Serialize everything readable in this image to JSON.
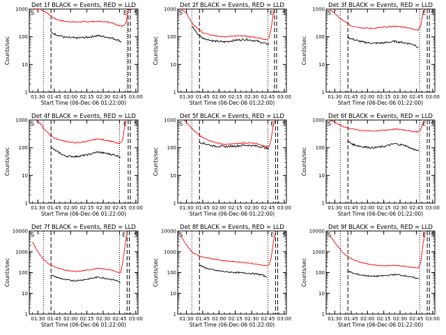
{
  "chart_data": [
    {
      "type": "line",
      "title": "Det 1f BLACK = Events, RED = LLD",
      "xlabel": "Start Time (06-Dec-06 01:22:00)",
      "ylabel": "Counts/sec",
      "yscale": "log",
      "ylim": [
        1,
        1000
      ],
      "xlim": [
        "01:22",
        "03:02"
      ],
      "x_ticks": [
        "01:30",
        "01:45",
        "02:00",
        "02:15",
        "02:30",
        "02:45",
        "03:00"
      ],
      "y_ticks": [
        "1",
        "10",
        "100",
        "1000"
      ],
      "top_left_mark": "S",
      "top_right_marks": [
        "E",
        "S"
      ],
      "dotted_markers": [
        "01:35",
        "02:52"
      ],
      "dashed_markers": [
        "01:42",
        "02:53",
        "02:55"
      ],
      "series": [
        {
          "color": "#ff0000",
          "x": [
            "01:25",
            "01:32",
            "01:38",
            "01:42",
            "01:47",
            "01:55",
            "02:05",
            "02:15",
            "02:25",
            "02:35",
            "02:40",
            "02:44",
            "02:47",
            "02:49",
            "02:51",
            "02:53",
            "02:55"
          ],
          "y": [
            1000,
            1000,
            750,
            550,
            420,
            360,
            340,
            350,
            360,
            340,
            300,
            260,
            250,
            260,
            320,
            900,
            1000
          ]
        },
        {
          "color": "#000000",
          "x": [
            "01:42",
            "01:47",
            "01:55",
            "02:05",
            "02:15",
            "02:25",
            "02:35",
            "02:40",
            "02:44",
            "02:47"
          ],
          "y": [
            140,
            120,
            95,
            90,
            95,
            110,
            95,
            85,
            75,
            65
          ]
        }
      ]
    },
    {
      "type": "line",
      "title": "Det 2f BLACK = Events, RED = LLD",
      "xlabel": "Start Time (06-Dec-06 01:22:00)",
      "ylabel": "Counts/sec",
      "yscale": "log",
      "ylim": [
        1,
        1000
      ],
      "xlim": [
        "01:22",
        "03:02"
      ],
      "x_ticks": [
        "01:30",
        "01:45",
        "02:00",
        "02:15",
        "02:30",
        "02:45",
        "03:00"
      ],
      "y_ticks": [
        "1",
        "10",
        "100",
        "1000"
      ],
      "top_left_mark": "S",
      "top_right_marks": [
        "E",
        "S"
      ],
      "dotted_markers": [
        "01:35",
        "02:45"
      ],
      "dashed_markers": [
        "01:42",
        "02:51",
        "02:53"
      ],
      "series": [
        {
          "color": "#ff0000",
          "x": [
            "01:25",
            "01:30",
            "01:35",
            "01:40",
            "01:45",
            "01:55",
            "02:05",
            "02:15",
            "02:25",
            "02:35",
            "02:40",
            "02:44",
            "02:46",
            "02:48",
            "02:50",
            "02:51"
          ],
          "y": [
            1000,
            700,
            320,
            200,
            140,
            110,
            100,
            110,
            105,
            95,
            85,
            80,
            90,
            200,
            700,
            1000
          ]
        },
        {
          "color": "#000000",
          "x": [
            "01:35",
            "01:40",
            "01:45",
            "01:55",
            "02:05",
            "02:15",
            "02:25",
            "02:35",
            "02:40",
            "02:44",
            "02:46"
          ],
          "y": [
            250,
            130,
            90,
            70,
            65,
            75,
            80,
            70,
            60,
            55,
            55
          ]
        }
      ]
    },
    {
      "type": "line",
      "title": "Det 3f BLACK = Events, RED = LLD",
      "xlabel": "Start Time (06-Dec-06 01:22:00)",
      "ylabel": "Counts/sec",
      "yscale": "log",
      "ylim": [
        1,
        1000
      ],
      "xlim": [
        "01:22",
        "03:02"
      ],
      "x_ticks": [
        "01:30",
        "01:45",
        "02:00",
        "02:15",
        "02:30",
        "02:45",
        "03:00"
      ],
      "y_ticks": [
        "1",
        "10",
        "100",
        "1000"
      ],
      "top_left_mark": "S",
      "top_right_marks": [
        "E",
        "S"
      ],
      "dotted_markers": [
        "01:35",
        "02:48"
      ],
      "dashed_markers": [
        "01:42",
        "02:55",
        "02:57"
      ],
      "series": [
        {
          "color": "#ff0000",
          "x": [
            "01:25",
            "01:30",
            "01:35",
            "01:40",
            "01:45",
            "01:55",
            "02:05",
            "02:15",
            "02:25",
            "02:35",
            "02:40",
            "02:44",
            "02:47",
            "02:49",
            "02:51",
            "02:53"
          ],
          "y": [
            1000,
            700,
            450,
            330,
            250,
            210,
            200,
            220,
            240,
            220,
            200,
            180,
            180,
            250,
            700,
            1000
          ]
        },
        {
          "color": "#000000",
          "x": [
            "01:42",
            "01:47",
            "01:55",
            "02:05",
            "02:15",
            "02:25",
            "02:35",
            "02:40",
            "02:44",
            "02:47"
          ],
          "y": [
            95,
            80,
            65,
            58,
            60,
            68,
            60,
            55,
            50,
            40
          ]
        }
      ]
    },
    {
      "type": "line",
      "title": "Det 4f BLACK = Events, RED = LLD",
      "xlabel": "Start Time (06-Dec-06 01:22:00)",
      "ylabel": "Counts/sec",
      "yscale": "log",
      "ylim": [
        1,
        1000
      ],
      "xlim": [
        "01:22",
        "03:02"
      ],
      "x_ticks": [
        "01:30",
        "01:45",
        "02:00",
        "02:15",
        "02:30",
        "02:45",
        "03:00"
      ],
      "y_ticks": [
        "1",
        "10",
        "100",
        "1000"
      ],
      "top_left_mark": "S",
      "top_right_marks": [
        "E",
        "S"
      ],
      "dotted_markers": [
        "01:35",
        "02:45"
      ],
      "dashed_markers": [
        "01:42",
        "02:53",
        "02:55"
      ],
      "series": [
        {
          "color": "#ff0000",
          "x": [
            "01:28",
            "01:32",
            "01:36",
            "01:40",
            "01:45",
            "01:55",
            "02:05",
            "02:15",
            "02:25",
            "02:35",
            "02:40",
            "02:44",
            "02:46",
            "02:48",
            "02:50",
            "02:51"
          ],
          "y": [
            1000,
            750,
            450,
            320,
            220,
            170,
            150,
            170,
            210,
            180,
            160,
            140,
            150,
            200,
            700,
            1000
          ]
        },
        {
          "color": "#000000",
          "x": [
            "01:42",
            "01:47",
            "01:55",
            "02:05",
            "02:15",
            "02:25",
            "02:35",
            "02:40",
            "02:44",
            "02:46"
          ],
          "y": [
            100,
            75,
            50,
            48,
            55,
            70,
            60,
            55,
            50,
            45
          ]
        }
      ]
    },
    {
      "type": "line",
      "title": "Det 5f BLACK = Events, RED = LLD",
      "xlabel": "Start Time (06-Dec-06 01:22:00)",
      "ylabel": "Counts/sec",
      "yscale": "log",
      "ylim": [
        1,
        1000
      ],
      "xlim": [
        "01:22",
        "03:02"
      ],
      "x_ticks": [
        "01:30",
        "01:45",
        "02:00",
        "02:15",
        "02:30",
        "02:45",
        "03:00"
      ],
      "y_ticks": [
        "1",
        "10",
        "100",
        "1000"
      ],
      "top_left_mark": "S",
      "top_right_marks": [
        "E",
        "S"
      ],
      "dotted_markers": [
        "01:35",
        "02:45"
      ],
      "dashed_markers": [
        "01:42",
        "02:52",
        "02:54"
      ],
      "series": [
        {
          "color": "#ff0000",
          "x": [
            "01:28",
            "01:32",
            "01:36",
            "01:40",
            "01:45",
            "01:55",
            "02:05",
            "02:15",
            "02:25",
            "02:35",
            "02:40",
            "02:44",
            "02:46",
            "02:48",
            "02:50",
            "02:52"
          ],
          "y": [
            1000,
            700,
            450,
            320,
            230,
            160,
            130,
            140,
            150,
            140,
            120,
            110,
            110,
            200,
            700,
            1000
          ]
        },
        {
          "color": "#000000",
          "x": [
            "01:42",
            "01:47",
            "01:55",
            "02:05",
            "02:15",
            "02:25",
            "02:35",
            "02:40",
            "02:44",
            "02:46"
          ],
          "y": [
            160,
            140,
            115,
            110,
            115,
            125,
            115,
            105,
            95,
            90
          ]
        }
      ]
    },
    {
      "type": "line",
      "title": "Det 6f BLACK = Events, RED = LLD",
      "xlabel": "Start Time (06-Dec-06 01:22:00)",
      "ylabel": "Counts/sec",
      "yscale": "log",
      "ylim": [
        1,
        1000
      ],
      "xlim": [
        "01:22",
        "03:02"
      ],
      "x_ticks": [
        "01:30",
        "01:45",
        "02:00",
        "02:15",
        "02:30",
        "02:45",
        "03:00"
      ],
      "y_ticks": [
        "1",
        "10",
        "100",
        "1000"
      ],
      "top_left_mark": "S",
      "top_right_marks": [
        "E",
        "S"
      ],
      "dotted_markers": [
        "01:35",
        "02:48"
      ],
      "dashed_markers": [
        "01:42",
        "02:55",
        "02:57"
      ],
      "series": [
        {
          "color": "#ff0000",
          "x": [
            "01:25",
            "01:30",
            "01:35",
            "01:40",
            "01:45",
            "01:55",
            "02:05",
            "02:15",
            "02:25",
            "02:35",
            "02:40",
            "02:44",
            "02:47",
            "02:49",
            "02:51",
            "02:53"
          ],
          "y": [
            1000,
            850,
            650,
            550,
            480,
            420,
            400,
            430,
            470,
            440,
            400,
            380,
            380,
            450,
            800,
            1000
          ]
        },
        {
          "color": "#000000",
          "x": [
            "01:42",
            "01:47",
            "01:55",
            "02:05",
            "02:15",
            "02:25",
            "02:35",
            "02:40",
            "02:44",
            "02:47"
          ],
          "y": [
            170,
            130,
            110,
            100,
            110,
            140,
            120,
            95,
            85,
            75
          ]
        }
      ]
    },
    {
      "type": "line",
      "title": "Det 7f BLACK = Events, RED = LLD",
      "xlabel": "Start Time (06-Dec-06 01:22:00)",
      "ylabel": "Counts/sec",
      "yscale": "log",
      "ylim": [
        1,
        10000
      ],
      "xlim": [
        "01:22",
        "03:02"
      ],
      "x_ticks": [
        "01:30",
        "01:45",
        "02:00",
        "02:15",
        "02:30",
        "02:45",
        "03:00"
      ],
      "y_ticks": [
        "1",
        "10",
        "100",
        "1000",
        "10000"
      ],
      "top_left_mark": "S",
      "top_right_marks": [
        "E",
        "S"
      ],
      "dotted_markers": [
        "01:35",
        "02:45"
      ],
      "dashed_markers": [
        "01:42",
        "02:52",
        "02:54"
      ],
      "series": [
        {
          "color": "#ff0000",
          "x": [
            "01:25",
            "01:28",
            "01:32",
            "01:36",
            "01:40",
            "01:45",
            "01:55",
            "02:05",
            "02:15",
            "02:25",
            "02:35",
            "02:40",
            "02:44",
            "02:46",
            "02:48",
            "02:50",
            "02:52"
          ],
          "y": [
            3000,
            1500,
            700,
            400,
            260,
            190,
            130,
            110,
            130,
            160,
            140,
            120,
            100,
            100,
            300,
            2000,
            8000
          ]
        },
        {
          "color": "#000000",
          "x": [
            "01:42",
            "01:47",
            "01:55",
            "02:05",
            "02:15",
            "02:25",
            "02:35",
            "02:40",
            "02:44",
            "02:46"
          ],
          "y": [
            75,
            60,
            45,
            40,
            48,
            60,
            50,
            45,
            38,
            33
          ]
        }
      ]
    },
    {
      "type": "line",
      "title": "Det 8f BLACK = Events, RED = LLD",
      "xlabel": "Start Time (06-Dec-06 01:22:00)",
      "ylabel": "Counts/sec",
      "yscale": "log",
      "ylim": [
        1,
        10000
      ],
      "xlim": [
        "01:22",
        "03:02"
      ],
      "x_ticks": [
        "01:30",
        "01:45",
        "02:00",
        "02:15",
        "02:30",
        "02:45",
        "03:00"
      ],
      "y_ticks": [
        "1",
        "10",
        "100",
        "1000",
        "10000"
      ],
      "top_left_mark": "S",
      "top_right_marks": [
        "E",
        "S"
      ],
      "dotted_markers": [
        "01:35",
        "02:45"
      ],
      "dashed_markers": [
        "01:42",
        "02:52",
        "02:54"
      ],
      "series": [
        {
          "color": "#ff0000",
          "x": [
            "01:25",
            "01:28",
            "01:32",
            "01:36",
            "01:40",
            "01:45",
            "01:55",
            "02:05",
            "02:15",
            "02:25",
            "02:35",
            "02:40",
            "02:44",
            "02:46",
            "02:48",
            "02:50",
            "02:52"
          ],
          "y": [
            6000,
            3000,
            1500,
            900,
            700,
            560,
            450,
            370,
            330,
            300,
            250,
            220,
            220,
            240,
            500,
            3000,
            9000
          ]
        },
        {
          "color": "#000000",
          "x": [
            "01:42",
            "01:47",
            "01:55",
            "02:05",
            "02:15",
            "02:25",
            "02:35",
            "02:40",
            "02:44"
          ],
          "y": [
            230,
            170,
            130,
            110,
            100,
            95,
            85,
            75,
            60
          ]
        }
      ]
    },
    {
      "type": "line",
      "title": "Det 9f BLACK = Events, RED = LLD",
      "xlabel": "Start Time (06-Dec-06 01:22:00)",
      "ylabel": "Counts/sec",
      "yscale": "log",
      "ylim": [
        1,
        10000
      ],
      "xlim": [
        "01:22",
        "03:02"
      ],
      "x_ticks": [
        "01:30",
        "01:45",
        "02:00",
        "02:15",
        "02:30",
        "02:45",
        "03:00"
      ],
      "y_ticks": [
        "1",
        "10",
        "100",
        "1000",
        "10000"
      ],
      "top_left_mark": "S",
      "top_right_marks": [
        "E",
        "S"
      ],
      "dotted_markers": [
        "01:35",
        "02:48"
      ],
      "dashed_markers": [
        "01:42",
        "02:55",
        "02:57"
      ],
      "series": [
        {
          "color": "#ff0000",
          "x": [
            "01:25",
            "01:28",
            "01:32",
            "01:36",
            "01:40",
            "01:45",
            "01:55",
            "02:05",
            "02:15",
            "02:25",
            "02:35",
            "02:40",
            "02:44",
            "02:47",
            "02:49",
            "02:51",
            "02:53"
          ],
          "y": [
            6000,
            4000,
            2000,
            1100,
            700,
            450,
            300,
            230,
            210,
            220,
            200,
            180,
            170,
            170,
            300,
            2000,
            9000
          ]
        },
        {
          "color": "#000000",
          "x": [
            "01:42",
            "01:47",
            "01:55",
            "02:05",
            "02:15",
            "02:25",
            "02:35",
            "02:40",
            "02:44",
            "02:47"
          ],
          "y": [
            120,
            90,
            75,
            65,
            70,
            80,
            70,
            60,
            55,
            50
          ]
        }
      ]
    }
  ]
}
